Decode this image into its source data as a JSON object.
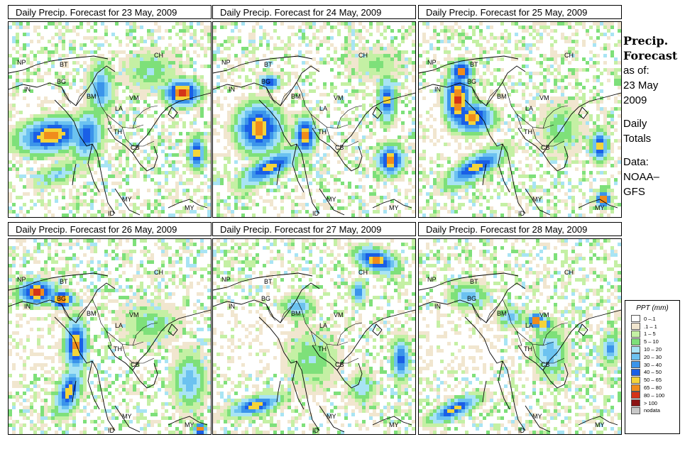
{
  "panels": [
    {
      "title": "Daily Precip. Forecast for  23 May, 2009"
    },
    {
      "title": "Daily Precip. Forecast for  24 May, 2009"
    },
    {
      "title": "Daily Precip. Forecast for  25 May, 2009"
    },
    {
      "title": "Daily Precip. Forecast for  26 May, 2009"
    },
    {
      "title": "Daily Precip. Forecast for  27 May, 2009"
    },
    {
      "title": "Daily Precip. Forecast for  28 May, 2009"
    }
  ],
  "country_labels": [
    "NP",
    "IN",
    "BT",
    "BG",
    "BM",
    "CH",
    "VM",
    "LA",
    "TH",
    "CB",
    "MY",
    "ID"
  ],
  "sidebar": {
    "heading_line1": "Precip.",
    "heading_line2": "Forecast",
    "as_of": "as of:",
    "date_line1": "23 May",
    "date_line2": "2009",
    "totals_line1": "Daily",
    "totals_line2": "Totals",
    "data_line1": "Data:",
    "data_line2": "NOAA–",
    "data_line3": "GFS"
  },
  "legend": {
    "title": "PPT (mm)",
    "items": [
      {
        "label": "0 –.1",
        "color": "#ffffff"
      },
      {
        "label": ".1 – 1",
        "color": "#f1e6cf"
      },
      {
        "label": "1 – 5",
        "color": "#c4f0a4"
      },
      {
        "label": "5 – 10",
        "color": "#7ee07a"
      },
      {
        "label": "10 – 20",
        "color": "#a8e4f4"
      },
      {
        "label": "20 – 30",
        "color": "#6cc2f0"
      },
      {
        "label": "30 – 40",
        "color": "#3b94ea"
      },
      {
        "label": "40 – 50",
        "color": "#1a5fe6"
      },
      {
        "label": "50 – 65",
        "color": "#f4d43a"
      },
      {
        "label": "65 – 80",
        "color": "#f08c1c"
      },
      {
        "label": "80 – 100",
        "color": "#d43418"
      },
      {
        "label": "> 100",
        "color": "#8c1414"
      },
      {
        "label": "nodata",
        "color": "#c8c8c8"
      }
    ]
  }
}
